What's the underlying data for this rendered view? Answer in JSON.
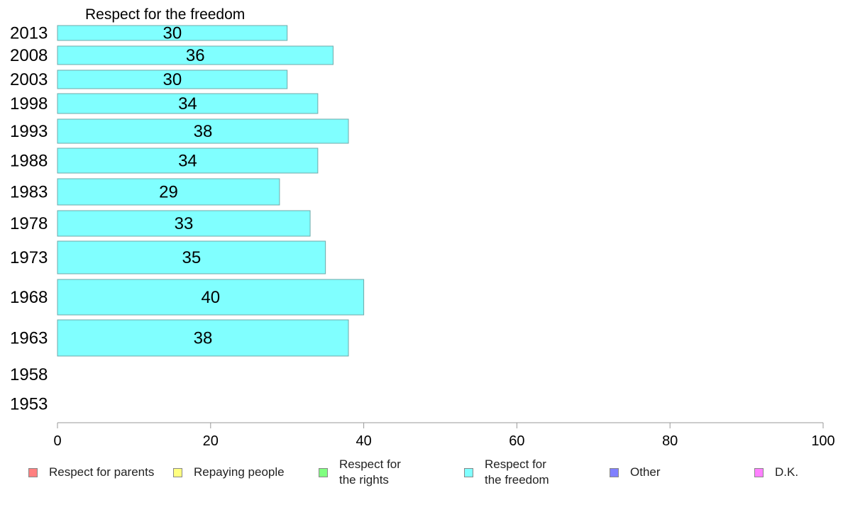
{
  "chart_data": {
    "type": "bar",
    "orientation": "horizontal",
    "title": "Respect for the freedom",
    "categories": [
      "2013",
      "2008",
      "2003",
      "1998",
      "1993",
      "1988",
      "1983",
      "1978",
      "1973",
      "1968",
      "1963",
      "1958",
      "1953"
    ],
    "series": [
      {
        "name": "Respect for the freedom",
        "values": [
          30,
          36,
          30,
          34,
          38,
          34,
          29,
          33,
          35,
          40,
          38,
          null,
          null
        ],
        "color": "#80ffff"
      }
    ],
    "xlim": [
      0,
      100
    ],
    "xticks": [
      "0",
      "20",
      "40",
      "60",
      "80",
      "100"
    ],
    "grid": false,
    "legend_position": "bottom"
  },
  "legend": [
    {
      "label": "Respect for parents",
      "color": "#ff8080"
    },
    {
      "label": "Repaying people",
      "color": "#ffff80"
    },
    {
      "label": "Respect for\nthe rights",
      "color": "#80ff80"
    },
    {
      "label": "Respect for\nthe freedom",
      "color": "#80ffff"
    },
    {
      "label": "Other",
      "color": "#8080ff"
    },
    {
      "label": "D.K.",
      "color": "#ff80ff"
    }
  ]
}
